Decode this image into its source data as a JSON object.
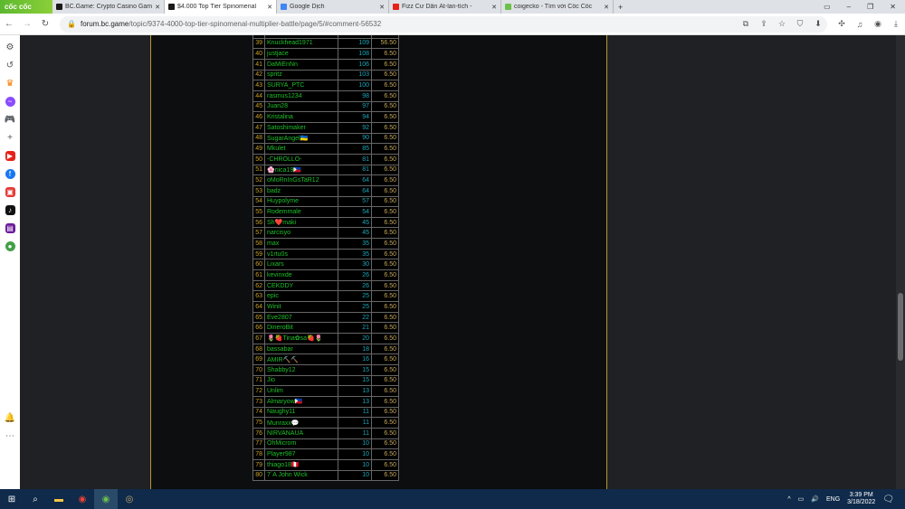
{
  "browser": {
    "brand": "cốc cốc",
    "tabs": [
      {
        "title": "BC.Game: Crypto Casino Gam",
        "color": "#1a1a1a"
      },
      {
        "title": "$4.000 Top Tier Spinomenal",
        "color": "#1a1a1a",
        "active": true
      },
      {
        "title": "Google Dịch",
        "color": "#4285f4"
      },
      {
        "title": "Fizz Cư Dân Ất-lan-tích -",
        "color": "#e62117"
      },
      {
        "title": "coigecko - Tìm với Cốc Cốc",
        "color": "#6cc04a"
      }
    ],
    "new_tab": "+",
    "url_domain": "forum.bc.game",
    "url_path": "/topic/9374-4000-top-tier-spinomenal-multiplier-battle/page/5/#comment-56532"
  },
  "table": {
    "rows": [
      [
        "38",
        "MakaatMe 🇺🇦",
        "110",
        "6.50"
      ],
      [
        "39",
        "Knuckhead1971",
        "109",
        "56.50"
      ],
      [
        "40",
        "justjace",
        "108",
        "6.50"
      ],
      [
        "41",
        "DaMiEnNn",
        "106",
        "6.50"
      ],
      [
        "42",
        "spritz",
        "103",
        "6.50"
      ],
      [
        "43",
        "SURYA_PTC",
        "100",
        "6.50"
      ],
      [
        "44",
        "rasmus1234",
        "98",
        "6.50"
      ],
      [
        "45",
        "Juan28",
        "97",
        "6.50"
      ],
      [
        "46",
        "Kristalina",
        "94",
        "6.50"
      ],
      [
        "47",
        "Satoshimaker",
        "92",
        "6.50"
      ],
      [
        "48",
        "SugarAngel🇺🇦",
        "90",
        "6.50"
      ],
      [
        "49",
        "Mkulet",
        "85",
        "6.50"
      ],
      [
        "50",
        "-CHROLLO-",
        "81",
        "6.50"
      ],
      [
        "51",
        "🌸nica19🇵🇭",
        "81",
        "6.50"
      ],
      [
        "52",
        "oMoRnInGsTaR12",
        "64",
        "6.50"
      ],
      [
        "53",
        "badz",
        "64",
        "6.50"
      ],
      [
        "54",
        "Huypolyme",
        "57",
        "6.50"
      ],
      [
        "55",
        "Rodemmale",
        "54",
        "6.50"
      ],
      [
        "56",
        "Sh❤️maki",
        "45",
        "6.50"
      ],
      [
        "57",
        "narcisyo",
        "45",
        "6.50"
      ],
      [
        "58",
        "max",
        "35",
        "6.50"
      ],
      [
        "59",
        "v1rtu0s",
        "35",
        "6.50"
      ],
      [
        "60",
        "Lixars",
        "30",
        "6.50"
      ],
      [
        "61",
        "kevinxde",
        "26",
        "6.50"
      ],
      [
        "62",
        "CEKDDY",
        "26",
        "6.50"
      ],
      [
        "63",
        "epic",
        "25",
        "6.50"
      ],
      [
        "64",
        "Winit",
        "25",
        "6.50"
      ],
      [
        "65",
        "Eve2807",
        "22",
        "6.50"
      ],
      [
        "66",
        "DineroBit",
        "21",
        "6.50"
      ],
      [
        "67",
        "🌷🍓Tina✿sa🍓🌷",
        "20",
        "6.50"
      ],
      [
        "68",
        "bassabar",
        "18",
        "6.50"
      ],
      [
        "69",
        "AMIR⛏️⛏️",
        "16",
        "6.50"
      ],
      [
        "70",
        "Shabby12",
        "15",
        "6.50"
      ],
      [
        "71",
        "Jio",
        "15",
        "6.50"
      ],
      [
        "72",
        "Unlim",
        "13",
        "6.50"
      ],
      [
        "73",
        "Almaryow🇵🇭",
        "13",
        "6.50"
      ],
      [
        "74",
        "Naughy11",
        "11",
        "6.50"
      ],
      [
        "75",
        "Munraxx💬",
        "11",
        "6.50"
      ],
      [
        "76",
        "NIRVANAUA",
        "11",
        "6.50"
      ],
      [
        "77",
        "OhMicrom",
        "10",
        "6.50"
      ],
      [
        "78",
        "Player987",
        "10",
        "6.50"
      ],
      [
        "79",
        "thiago18🇵🇪",
        "10",
        "6.50"
      ],
      [
        "80",
        "7´A John Wick",
        "10",
        "6.50"
      ]
    ]
  },
  "taskbar": {
    "lang": "ENG",
    "time": "3:39 PM",
    "date": "3/18/2022"
  },
  "colors": {
    "rank": "#c9a227",
    "name": "#1fbf2a",
    "score": "#1aa6b8",
    "prize": "#c4a85a",
    "panel_border": "#b8962e"
  }
}
